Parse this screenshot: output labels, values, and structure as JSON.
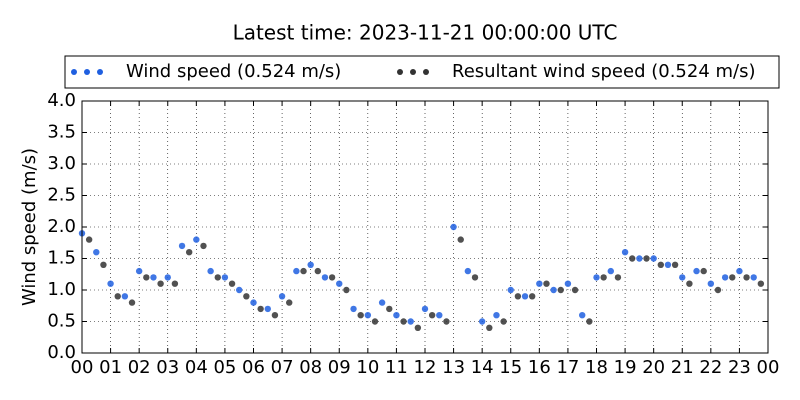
{
  "chart_data": {
    "type": "scatter",
    "title": "Latest time: 2023-11-21 00:00:00 UTC",
    "y_label": "Wind speed (m/s)",
    "xlim": [
      0,
      24
    ],
    "xticks": [
      {
        "value": 0,
        "label": "00"
      },
      {
        "value": 1,
        "label": "01"
      },
      {
        "value": 2,
        "label": "02"
      },
      {
        "value": 3,
        "label": "03"
      },
      {
        "value": 4,
        "label": "04"
      },
      {
        "value": 5,
        "label": "05"
      },
      {
        "value": 6,
        "label": "06"
      },
      {
        "value": 7,
        "label": "07"
      },
      {
        "value": 8,
        "label": "08"
      },
      {
        "value": 9,
        "label": "09"
      },
      {
        "value": 10,
        "label": "10"
      },
      {
        "value": 11,
        "label": "11"
      },
      {
        "value": 12,
        "label": "12"
      },
      {
        "value": 13,
        "label": "13"
      },
      {
        "value": 14,
        "label": "14"
      },
      {
        "value": 15,
        "label": "15"
      },
      {
        "value": 16,
        "label": "16"
      },
      {
        "value": 17,
        "label": "17"
      },
      {
        "value": 18,
        "label": "18"
      },
      {
        "value": 19,
        "label": "19"
      },
      {
        "value": 20,
        "label": "20"
      },
      {
        "value": 21,
        "label": "21"
      },
      {
        "value": 22,
        "label": "22"
      },
      {
        "value": 23,
        "label": "23"
      },
      {
        "value": 24,
        "label": "00"
      }
    ],
    "ylim": [
      0,
      4
    ],
    "yticks": [
      {
        "value": 0,
        "label": "0.0"
      },
      {
        "value": 0.5,
        "label": "0.5"
      },
      {
        "value": 1,
        "label": "1.0"
      },
      {
        "value": 1.5,
        "label": "1.5"
      },
      {
        "value": 2,
        "label": "2.0"
      },
      {
        "value": 2.5,
        "label": "2.5"
      },
      {
        "value": 3,
        "label": "3.0"
      },
      {
        "value": 3.5,
        "label": "3.5"
      },
      {
        "value": 4,
        "label": "4.0"
      }
    ],
    "grid": true,
    "series": [
      {
        "name": "Wind speed (0.524 m/s)",
        "color": "#1f5fe0",
        "x": [
          0,
          0.5,
          1,
          1.5,
          2,
          2.5,
          3,
          3.5,
          4,
          4.5,
          5,
          5.5,
          6,
          6.5,
          7,
          7.5,
          8,
          8.5,
          9,
          9.5,
          10,
          10.5,
          11,
          11.5,
          12,
          12.5,
          13,
          13.5,
          14,
          14.5,
          15,
          15.5,
          16,
          16.5,
          17,
          17.5,
          18,
          18.5,
          19,
          19.5,
          20,
          20.5,
          21,
          21.5,
          22,
          22.5,
          23,
          23.5
        ],
        "values": [
          1.9,
          1.6,
          1.1,
          0.9,
          1.3,
          1.2,
          1.2,
          1.7,
          1.8,
          1.3,
          1.2,
          1.0,
          0.8,
          0.7,
          0.9,
          1.3,
          1.4,
          1.2,
          1.1,
          0.7,
          0.6,
          0.8,
          0.6,
          0.5,
          0.7,
          0.6,
          2.0,
          1.3,
          0.5,
          0.6,
          1.0,
          0.9,
          1.1,
          1.0,
          1.1,
          0.6,
          1.2,
          1.3,
          1.6,
          1.5,
          1.5,
          1.4,
          1.2,
          1.3,
          1.1,
          1.2,
          1.3,
          1.2
        ]
      },
      {
        "name": "Resultant wind speed (0.524 m/s)",
        "color": "#333333",
        "x": [
          0.25,
          0.75,
          1.25,
          1.75,
          2.25,
          2.75,
          3.25,
          3.75,
          4.25,
          4.75,
          5.25,
          5.75,
          6.25,
          6.75,
          7.25,
          7.75,
          8.25,
          8.75,
          9.25,
          9.75,
          10.25,
          10.75,
          11.25,
          11.75,
          12.25,
          12.75,
          13.25,
          13.75,
          14.25,
          14.75,
          15.25,
          15.75,
          16.25,
          16.75,
          17.25,
          17.75,
          18.25,
          18.75,
          19.25,
          19.75,
          20.25,
          20.75,
          21.25,
          21.75,
          22.25,
          22.75,
          23.25,
          23.75
        ],
        "values": [
          1.8,
          1.4,
          0.9,
          0.8,
          1.2,
          1.1,
          1.1,
          1.6,
          1.7,
          1.2,
          1.1,
          0.9,
          0.7,
          0.6,
          0.8,
          1.3,
          1.3,
          1.2,
          1.0,
          0.6,
          0.5,
          0.7,
          0.5,
          0.4,
          0.6,
          0.5,
          1.8,
          1.2,
          0.4,
          0.5,
          0.9,
          0.9,
          1.1,
          1.0,
          1.0,
          0.5,
          1.2,
          1.2,
          1.5,
          1.5,
          1.4,
          1.4,
          1.1,
          1.3,
          1.0,
          1.2,
          1.2,
          1.1
        ]
      }
    ]
  }
}
